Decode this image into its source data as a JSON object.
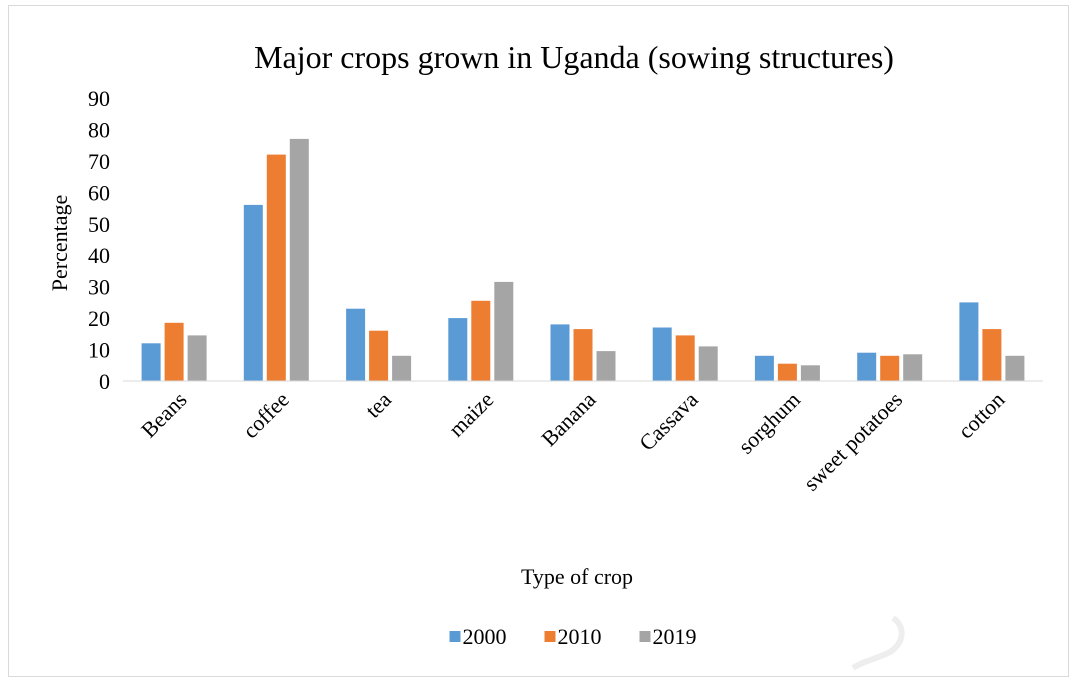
{
  "chart_data": {
    "type": "bar",
    "title": "Major crops grown in Uganda (sowing structures)",
    "xlabel": "Type of crop",
    "ylabel": "Percentage",
    "ylim": [
      0,
      90
    ],
    "yticks": [
      0,
      10,
      20,
      30,
      40,
      50,
      60,
      70,
      80,
      90
    ],
    "grid": false,
    "legend_position": "bottom",
    "categories": [
      "Beans",
      "coffee",
      "tea",
      "maize",
      "Banana",
      "Cassava",
      "sorghum",
      "sweet potatoes",
      "cotton"
    ],
    "series": [
      {
        "name": "2000",
        "color": "#5b9bd5",
        "values": [
          12,
          56,
          23,
          20,
          18,
          17,
          8,
          9,
          25
        ]
      },
      {
        "name": "2010",
        "color": "#ed7d31",
        "values": [
          18.5,
          72,
          16,
          25.5,
          16.5,
          14.5,
          5.5,
          8,
          16.5
        ]
      },
      {
        "name": "2019",
        "color": "#a5a5a5",
        "values": [
          14.5,
          77,
          8,
          31.5,
          9.5,
          11,
          5,
          8.5,
          8
        ]
      }
    ]
  }
}
